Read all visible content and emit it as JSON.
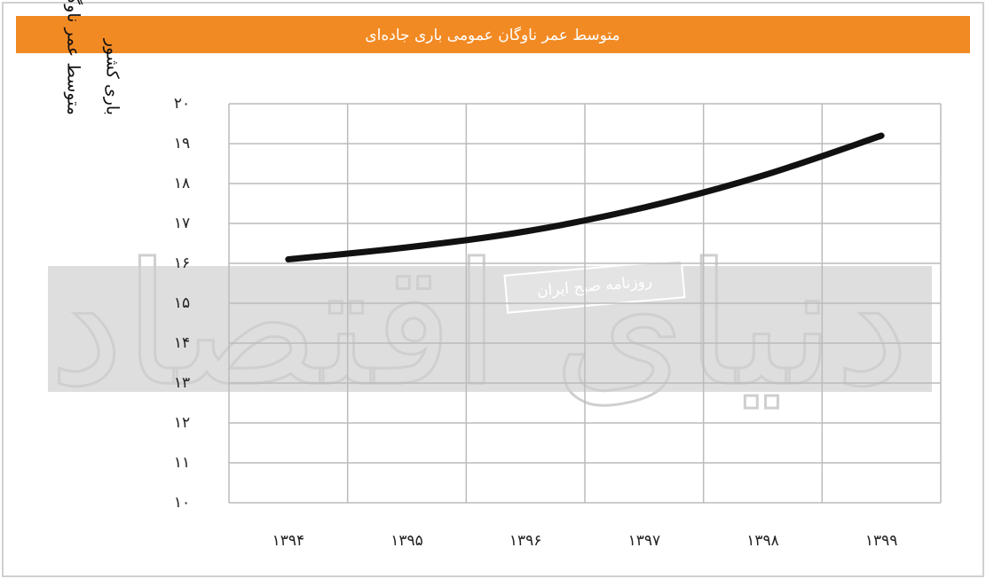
{
  "chart_data": {
    "type": "line",
    "title": "متوسط عمر ناوگان عمومی باری جاده‌ای",
    "y_label": [
      "متوسط عمر ناوگان حمل و نقل سنگین",
      "باری کشور"
    ],
    "categories": [
      "۱۳۹۴",
      "۱۳۹۵",
      "۱۳۹۶",
      "۱۳۹۷",
      "۱۳۹۸",
      "۱۳۹۹"
    ],
    "values": [
      16.1,
      16.4,
      16.8,
      17.4,
      18.2,
      19.2
    ],
    "color": "#111111",
    "ylim": [
      10,
      20
    ],
    "yticks": [
      {
        "value": 10,
        "label": "۱۰"
      },
      {
        "value": 11,
        "label": "۱۱"
      },
      {
        "value": 12,
        "label": "۱۲"
      },
      {
        "value": 13,
        "label": "۱۳"
      },
      {
        "value": 14,
        "label": "۱۴"
      },
      {
        "value": 15,
        "label": "۱۵"
      },
      {
        "value": 16,
        "label": "۱۶"
      },
      {
        "value": 17,
        "label": "۱۷"
      },
      {
        "value": 18,
        "label": "۱۸"
      },
      {
        "value": 19,
        "label": "۱۹"
      },
      {
        "value": 20,
        "label": "۲۰"
      }
    ],
    "grid": true,
    "watermark": {
      "logo": "دنیای اقتصاد",
      "tag": "روزنامه صبح ایران"
    }
  }
}
